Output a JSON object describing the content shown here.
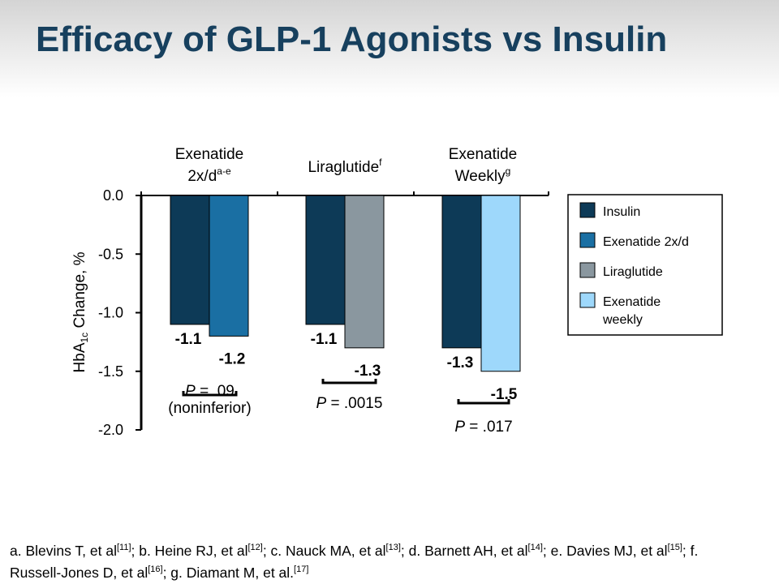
{
  "title": "Efficacy of GLP-1 Agonists vs Insulin",
  "chart_data": {
    "type": "bar",
    "ylabel": {
      "main": "HbA",
      "sub": "1c",
      "rest": " Change, %"
    },
    "ylim": [
      -2.0,
      0.0
    ],
    "yticks": [
      "0.0",
      "-0.5",
      "-1.0",
      "-1.5",
      "-2.0"
    ],
    "grid": false,
    "legend_position": "right",
    "groups": [
      {
        "label_lines": [
          "Exenatide",
          "2x/d"
        ],
        "label_sup": "a-e",
        "bars": [
          {
            "series": "Insulin",
            "value": -1.1,
            "label": "-1.1"
          },
          {
            "series": "Exenatide 2x/d",
            "value": -1.2,
            "label": "-1.2"
          }
        ],
        "p_label": "P",
        "p_value": " = .09",
        "p_note": "(noninferior)"
      },
      {
        "label_lines": [
          "Liraglutide"
        ],
        "label_sup": "f",
        "bars": [
          {
            "series": "Insulin",
            "value": -1.1,
            "label": "-1.1"
          },
          {
            "series": "Liraglutide",
            "value": -1.3,
            "label": "-1.3"
          }
        ],
        "p_label": "P",
        "p_value": " = .0015",
        "p_note": ""
      },
      {
        "label_lines": [
          "Exenatide",
          "Weekly"
        ],
        "label_sup": "g",
        "bars": [
          {
            "series": "Insulin",
            "value": -1.3,
            "label": "-1.3"
          },
          {
            "series": "Exenatide weekly",
            "value": -1.5,
            "label": "-1.5"
          }
        ],
        "p_label": "P",
        "p_value": " = .017",
        "p_note": ""
      }
    ],
    "legend": [
      {
        "name": "Insulin",
        "lines": [
          "Insulin"
        ],
        "color": "#0d3a57"
      },
      {
        "name": "Exenatide 2x/d",
        "lines": [
          "Exenatide 2x/d"
        ],
        "color": "#1a6fa3"
      },
      {
        "name": "Liraglutide",
        "lines": [
          "Liraglutide"
        ],
        "color": "#8a979f"
      },
      {
        "name": "Exenatide weekly",
        "lines": [
          "Exenatide",
          "weekly"
        ],
        "color": "#9ed8fb"
      }
    ]
  },
  "footnote": [
    {
      "t": "a. Blevins T, et al"
    },
    {
      "sup": "[11]"
    },
    {
      "t": "; b. Heine RJ, et al"
    },
    {
      "sup": "[12]"
    },
    {
      "t": "; c. Nauck MA, et al"
    },
    {
      "sup": "[13]"
    },
    {
      "t": "; d. Barnett AH, et al"
    },
    {
      "sup": "[14]"
    },
    {
      "t": "; e. Davies MJ, et al"
    },
    {
      "sup": "[15]"
    },
    {
      "t": "; f. Russell-Jones D, et al"
    },
    {
      "sup": "[16]"
    },
    {
      "t": "; g. Diamant M, et al."
    },
    {
      "sup": "[17]"
    }
  ]
}
